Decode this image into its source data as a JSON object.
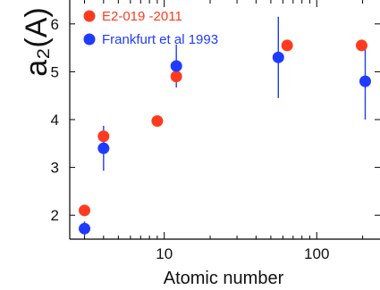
{
  "chart_data": {
    "type": "scatter",
    "xlabel": "Atomic number",
    "ylabel": "a₂(A)",
    "x_scale": "log",
    "xlim": [
      2.4,
      260
    ],
    "ylim": [
      1.5,
      6.5
    ],
    "x_ticks": [
      10,
      100
    ],
    "x_tick_labels": [
      "10",
      "100"
    ],
    "y_ticks": [
      2,
      3,
      4,
      5,
      6
    ],
    "y_tick_labels": [
      "2",
      "3",
      "4",
      "5",
      "6"
    ],
    "legend_position": "top-left",
    "series": [
      {
        "name": "E2-019 -2011",
        "color": "#ff3b1f",
        "points": [
          {
            "x": 3,
            "y": 2.1
          },
          {
            "x": 4,
            "y": 3.65
          },
          {
            "x": 9,
            "y": 3.97
          },
          {
            "x": 12,
            "y": 4.9
          },
          {
            "x": 64,
            "y": 5.55
          },
          {
            "x": 197,
            "y": 5.55
          }
        ]
      },
      {
        "name": "Frankfurt et al 1993",
        "color": "#1f3bff",
        "points": [
          {
            "x": 3,
            "y": 1.72,
            "err": 0.15
          },
          {
            "x": 4,
            "y": 3.4,
            "err": 0.47
          },
          {
            "x": 12,
            "y": 5.12,
            "err": 0.45
          },
          {
            "x": 56,
            "y": 5.3,
            "err": 0.85
          },
          {
            "x": 208,
            "y": 4.8,
            "err": 0.8
          }
        ]
      }
    ]
  }
}
